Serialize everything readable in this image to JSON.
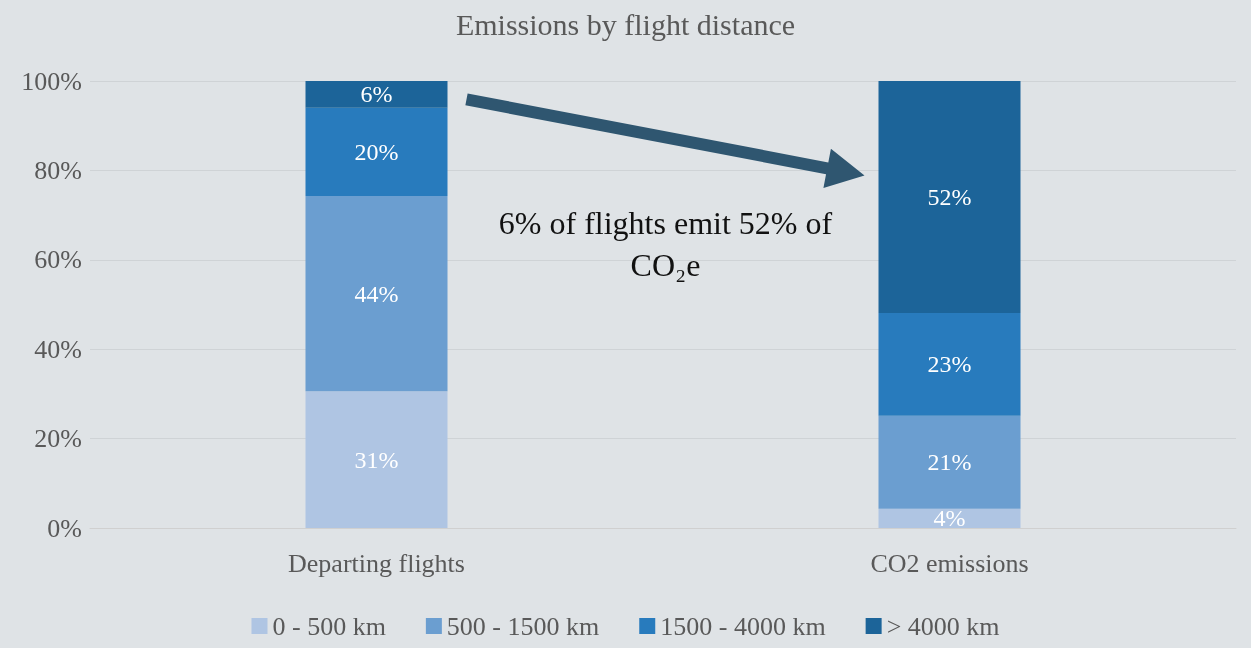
{
  "chart_data": {
    "type": "bar",
    "title": "Emissions by flight distance",
    "stacked": true,
    "categories": [
      "Departing flights",
      "CO2 emissions"
    ],
    "series": [
      {
        "name": "0 - 500 km",
        "color": "#afc5e3",
        "values": [
          30.6,
          4.3
        ],
        "value_labels": [
          "31%",
          "4%"
        ]
      },
      {
        "name": "500 - 1500 km",
        "color": "#6b9ed0",
        "values": [
          43.7,
          20.8
        ],
        "value_labels": [
          "44%",
          "21%"
        ]
      },
      {
        "name": "1500 - 4000 km",
        "color": "#287bbd",
        "values": [
          19.7,
          23.0
        ],
        "value_labels": [
          "20%",
          "23%"
        ]
      },
      {
        "name": "> 4000 km",
        "color": "#1c6499",
        "values": [
          6.0,
          51.9
        ],
        "value_labels": [
          "6%",
          "52%"
        ]
      }
    ],
    "ylim": [
      0,
      100
    ],
    "yticks": [
      {
        "value": 0,
        "label": "0%"
      },
      {
        "value": 20,
        "label": "20%"
      },
      {
        "value": 40,
        "label": "40%"
      },
      {
        "value": 60,
        "label": "60%"
      },
      {
        "value": 80,
        "label": "80%"
      },
      {
        "value": 100,
        "label": "100%"
      }
    ],
    "grid": "y",
    "legend": "bottom",
    "annotations": [
      "6% of flights emit 52% of CO₂e"
    ]
  }
}
